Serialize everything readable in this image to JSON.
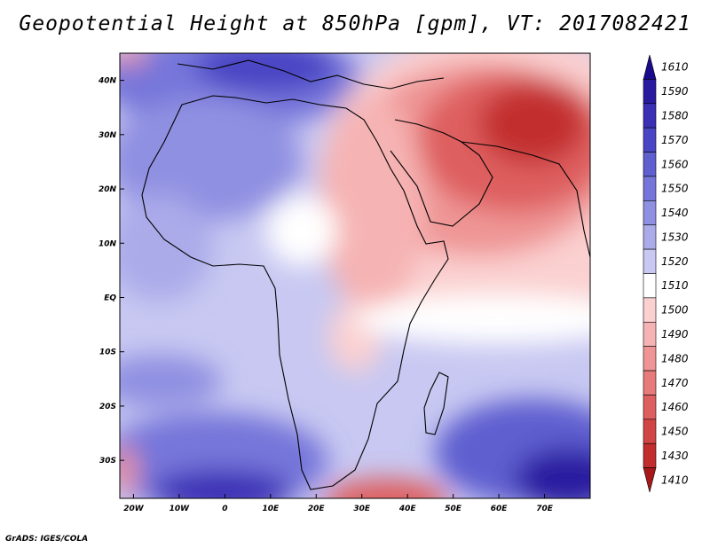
{
  "title": "Geopotential Height at 850hPa [gpm], VT: 2017082421",
  "credit": "GrADS: IGES/COLA",
  "map": {
    "lon_range": [
      -23,
      80
    ],
    "lat_range": [
      -37,
      45
    ],
    "lon_ticks": [
      {
        "value": -20,
        "label": "20W"
      },
      {
        "value": -10,
        "label": "10W"
      },
      {
        "value": 0,
        "label": "0"
      },
      {
        "value": 10,
        "label": "10E"
      },
      {
        "value": 20,
        "label": "20E"
      },
      {
        "value": 30,
        "label": "30E"
      },
      {
        "value": 40,
        "label": "40E"
      },
      {
        "value": 50,
        "label": "50E"
      },
      {
        "value": 60,
        "label": "60E"
      },
      {
        "value": 70,
        "label": "70E"
      }
    ],
    "lat_ticks": [
      {
        "value": 40,
        "label": "40N"
      },
      {
        "value": 30,
        "label": "30N"
      },
      {
        "value": 20,
        "label": "20N"
      },
      {
        "value": 10,
        "label": "10N"
      },
      {
        "value": 0,
        "label": "EQ"
      },
      {
        "value": -10,
        "label": "10S"
      },
      {
        "value": -20,
        "label": "20S"
      },
      {
        "value": -30,
        "label": "30S"
      }
    ]
  },
  "colorbar": {
    "levels": [
      {
        "label": "1610",
        "color": "#1a0a8c"
      },
      {
        "label": "1590",
        "color": "#2a1aa0"
      },
      {
        "label": "1580",
        "color": "#3a2fb5"
      },
      {
        "label": "1570",
        "color": "#4a45c4"
      },
      {
        "label": "1560",
        "color": "#5f5fd0"
      },
      {
        "label": "1550",
        "color": "#7676da"
      },
      {
        "label": "1540",
        "color": "#9090e2"
      },
      {
        "label": "1530",
        "color": "#ababea"
      },
      {
        "label": "1520",
        "color": "#c8c8f2"
      },
      {
        "label": "1510",
        "color": "#ffffff"
      },
      {
        "label": "1500",
        "color": "#fbd0d0"
      },
      {
        "label": "1490",
        "color": "#f6b3b3"
      },
      {
        "label": "1480",
        "color": "#ef9595"
      },
      {
        "label": "1470",
        "color": "#e77a7a"
      },
      {
        "label": "1460",
        "color": "#de5f5f"
      },
      {
        "label": "1450",
        "color": "#d24545"
      },
      {
        "label": "1430",
        "color": "#c22e2e"
      },
      {
        "label": "1410",
        "color": "#a81818"
      }
    ]
  }
}
